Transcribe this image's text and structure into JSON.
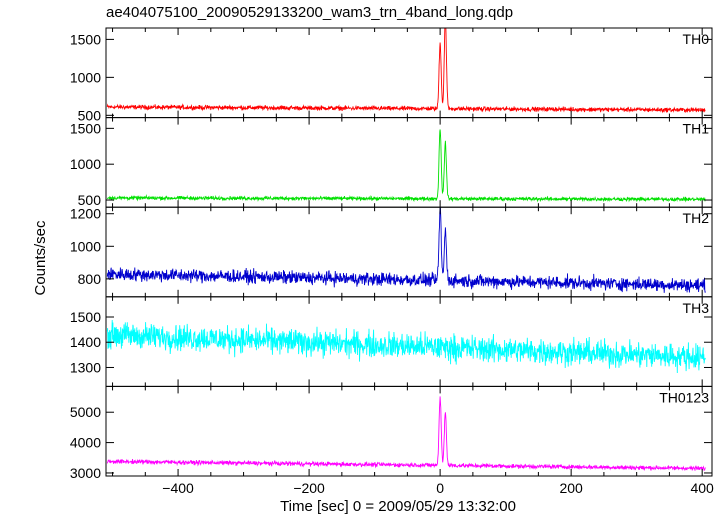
{
  "chart_data": {
    "type": "line",
    "title": "ae404075100_20090529133200_wam3_trn_4band_long.qdp",
    "xlabel": "Time [sec] 0 = 2009/05/29 13:32:00",
    "ylabel": "Counts/sec",
    "xlim": [
      -510,
      415
    ],
    "x_ticks": [
      -400,
      -200,
      0,
      200,
      400
    ],
    "grid": false,
    "panels": [
      {
        "name": "TH0",
        "color": "#ff0000",
        "ylim": [
          470,
          1650
        ],
        "y_ticks": [
          500,
          1000,
          1500
        ],
        "baseline_start": 610,
        "baseline_end": 570,
        "noise": 25,
        "peaks": [
          {
            "x": 0,
            "y": 1450
          },
          {
            "x": 8,
            "y": 1800
          }
        ]
      },
      {
        "name": "TH1",
        "color": "#00e000",
        "ylim": [
          400,
          1650
        ],
        "y_ticks": [
          500,
          1000,
          1500
        ],
        "baseline_start": 530,
        "baseline_end": 510,
        "noise": 22,
        "peaks": [
          {
            "x": 0,
            "y": 1500
          },
          {
            "x": 8,
            "y": 1300
          }
        ]
      },
      {
        "name": "TH2",
        "color": "#0000cd",
        "ylim": [
          690,
          1240
        ],
        "y_ticks": [
          800,
          1000,
          1200
        ],
        "baseline_start": 830,
        "baseline_end": 760,
        "noise": 35,
        "peaks": [
          {
            "x": 0,
            "y": 1240
          },
          {
            "x": 8,
            "y": 1100
          }
        ]
      },
      {
        "name": "TH3",
        "color": "#00ffff",
        "ylim": [
          1225,
          1580
        ],
        "y_ticks": [
          1300,
          1400,
          1500
        ],
        "baseline_start": 1430,
        "baseline_end": 1340,
        "noise": 45,
        "peaks": []
      },
      {
        "name": "TH0123",
        "color": "#ff00ff",
        "ylim": [
          2900,
          5850
        ],
        "y_ticks": [
          3000,
          4000,
          5000
        ],
        "baseline_start": 3380,
        "baseline_end": 3150,
        "noise": 60,
        "peaks": [
          {
            "x": 0,
            "y": 5500
          },
          {
            "x": 8,
            "y": 5000
          }
        ]
      }
    ]
  }
}
